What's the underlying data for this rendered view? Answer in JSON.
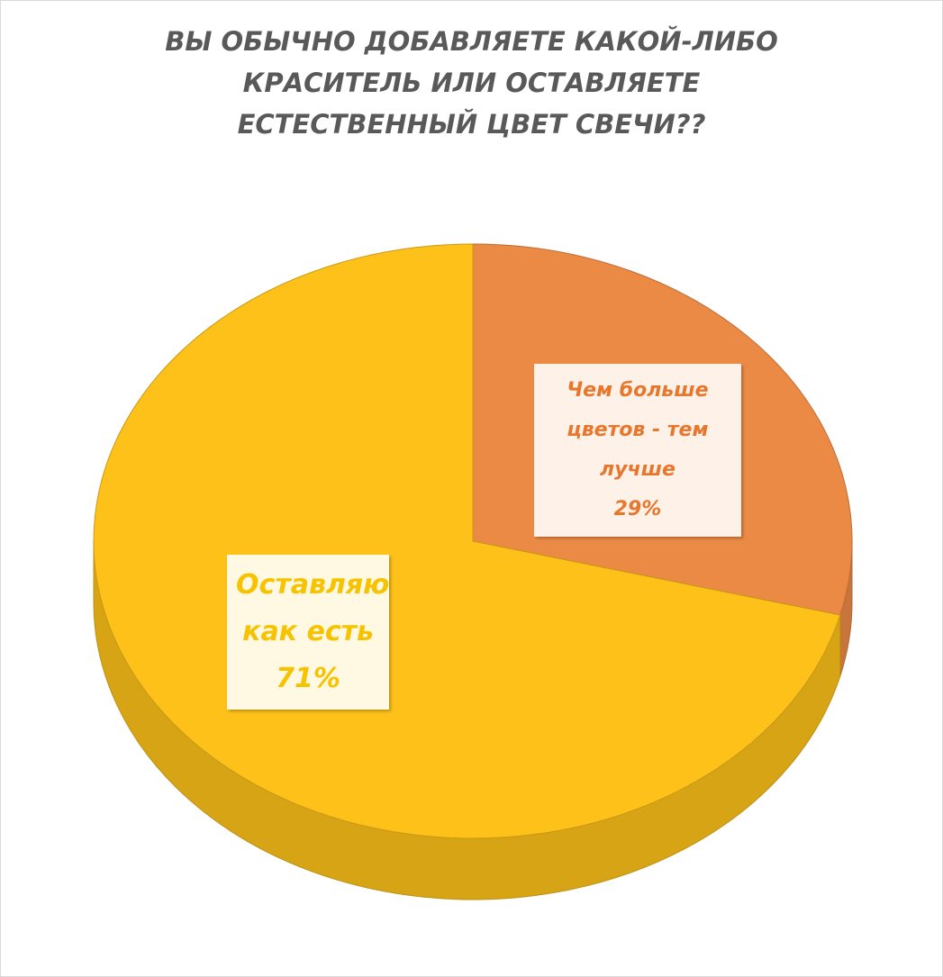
{
  "chart_data": {
    "type": "pie",
    "title": "ВЫ ОБЫЧНО ДОБАВЛЯЕТЕ КАКОЙ-ЛИБО КРАСИТЕЛЬ ИЛИ ОСТАВЛЯЕТЕ ЕСТЕСТВЕННЫЙ ЦВЕТ СВЕЧИ??",
    "categories": [
      "Чем больше цветов - тем лучше",
      "Оставляю как есть"
    ],
    "values": [
      29,
      71
    ],
    "value_labels": [
      "29%",
      "71%"
    ],
    "colors": [
      "#eb8a45",
      "#fdc11a"
    ],
    "label_colors": [
      "#e8772e",
      "#f7c300"
    ]
  }
}
